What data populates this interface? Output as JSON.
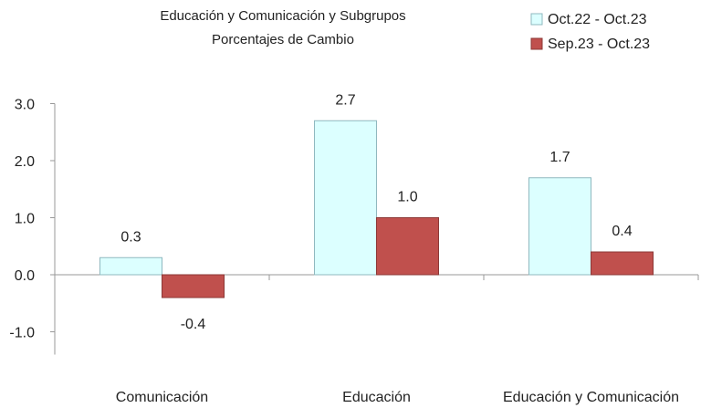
{
  "chart_data": {
    "type": "bar",
    "title": "Educación y Comunicación y Subgrupos",
    "subtitle": "Porcentajes de Cambio",
    "categories": [
      "Comunicación",
      "Educación",
      "Educación y Comunicación"
    ],
    "series": [
      {
        "name": "Oct.22 - Oct.23",
        "color": "#dcffff",
        "border": "#8fb8bf",
        "values": [
          0.3,
          2.7,
          1.7
        ],
        "value_labels": [
          "0.3",
          "2.7",
          "1.7"
        ]
      },
      {
        "name": "Sep.23 - Oct.23",
        "color": "#c0504d",
        "border": "#8c3836",
        "values": [
          -0.4,
          1.0,
          0.4
        ],
        "value_labels": [
          "-0.4",
          "1.0",
          "0.4"
        ]
      }
    ],
    "ylim": [
      -1.4,
      3.0
    ],
    "yticks": [
      {
        "value": 3,
        "label": "3.0"
      },
      {
        "value": 2,
        "label": "2.0"
      },
      {
        "value": 1,
        "label": "1.0"
      },
      {
        "value": 0,
        "label": "0.0"
      },
      {
        "value": -1,
        "label": "-1.0"
      }
    ],
    "legend": "top-right"
  }
}
